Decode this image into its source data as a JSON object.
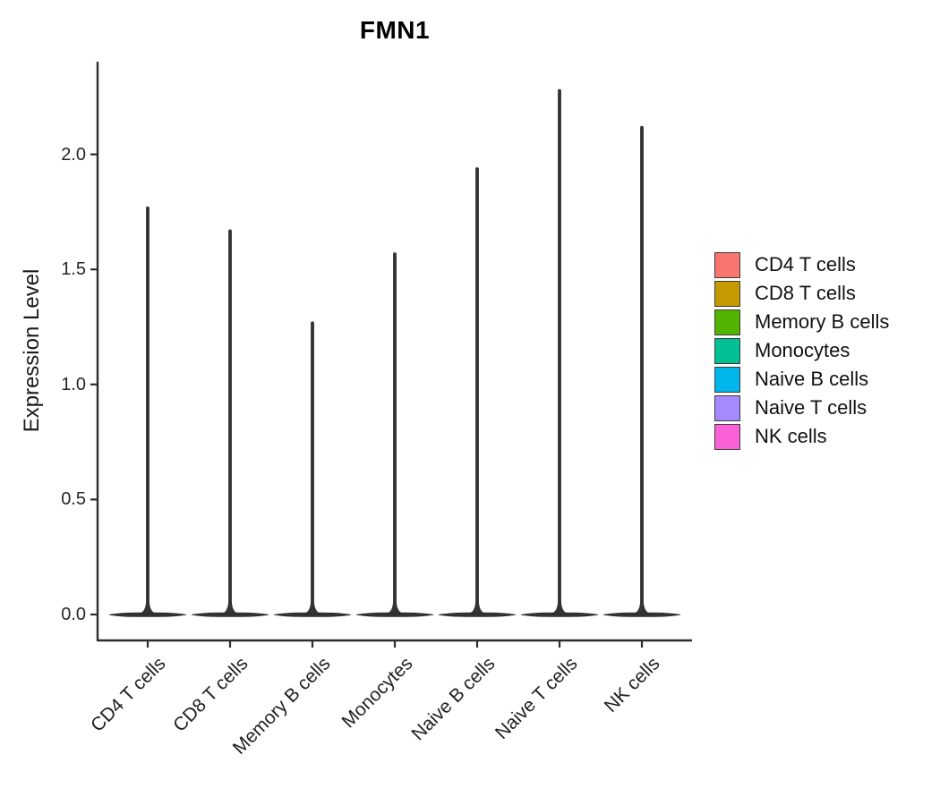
{
  "title": "FMN1",
  "y_axis": {
    "label": "Expression Level",
    "ticks": [
      "0.0",
      "0.5",
      "1.0",
      "1.5",
      "2.0"
    ],
    "tick_values": [
      0.0,
      0.5,
      1.0,
      1.5,
      2.0
    ]
  },
  "x_axis": {
    "categories": [
      "CD4 T cells",
      "CD8 T cells",
      "Memory B cells",
      "Monocytes",
      "Naive B cells",
      "Naive T cells",
      "NK cells"
    ]
  },
  "legend": {
    "position": "right",
    "items": [
      {
        "label": "CD4 T cells",
        "color": "#F8766D"
      },
      {
        "label": "CD8 T cells",
        "color": "#C49A00"
      },
      {
        "label": "Memory B cells",
        "color": "#53B400"
      },
      {
        "label": "Monocytes",
        "color": "#00C094"
      },
      {
        "label": "Naive B cells",
        "color": "#00B6EB"
      },
      {
        "label": "Naive T cells",
        "color": "#A58AFF"
      },
      {
        "label": "NK cells",
        "color": "#FB61D7"
      }
    ]
  },
  "colors": {
    "axis": "#2d2d2d",
    "violin": "#333333",
    "text": "#1f1f1f"
  },
  "chart_data": {
    "type": "violin",
    "title": "FMN1",
    "xlabel": "",
    "ylabel": "Expression Level",
    "ylim": [
      -0.11,
      2.4
    ],
    "yticks": [
      0.0,
      0.5,
      1.0,
      1.5,
      2.0
    ],
    "grid": false,
    "legend_position": "right",
    "categories": [
      "CD4 T cells",
      "CD8 T cells",
      "Memory B cells",
      "Monocytes",
      "Naive B cells",
      "Naive T cells",
      "NK cells"
    ],
    "series": [
      {
        "name": "CD4 T cells",
        "color": "#F8766D",
        "density_peak_at": 0,
        "max_expression": 1.77
      },
      {
        "name": "CD8 T cells",
        "color": "#C49A00",
        "density_peak_at": 0,
        "max_expression": 1.67
      },
      {
        "name": "Memory B cells",
        "color": "#53B400",
        "density_peak_at": 0,
        "max_expression": 1.27
      },
      {
        "name": "Monocytes",
        "color": "#00C094",
        "density_peak_at": 0,
        "max_expression": 1.57
      },
      {
        "name": "Naive B cells",
        "color": "#00B6EB",
        "density_peak_at": 0,
        "max_expression": 1.94
      },
      {
        "name": "Naive T cells",
        "color": "#A58AFF",
        "density_peak_at": 0,
        "max_expression": 2.28
      },
      {
        "name": "NK cells",
        "color": "#FB61D7",
        "density_peak_at": 0,
        "max_expression": 2.12
      }
    ],
    "shape_note": "zero-inflated violins: wide flat base at expression 0 with a thin spike rising to the max expression value"
  }
}
